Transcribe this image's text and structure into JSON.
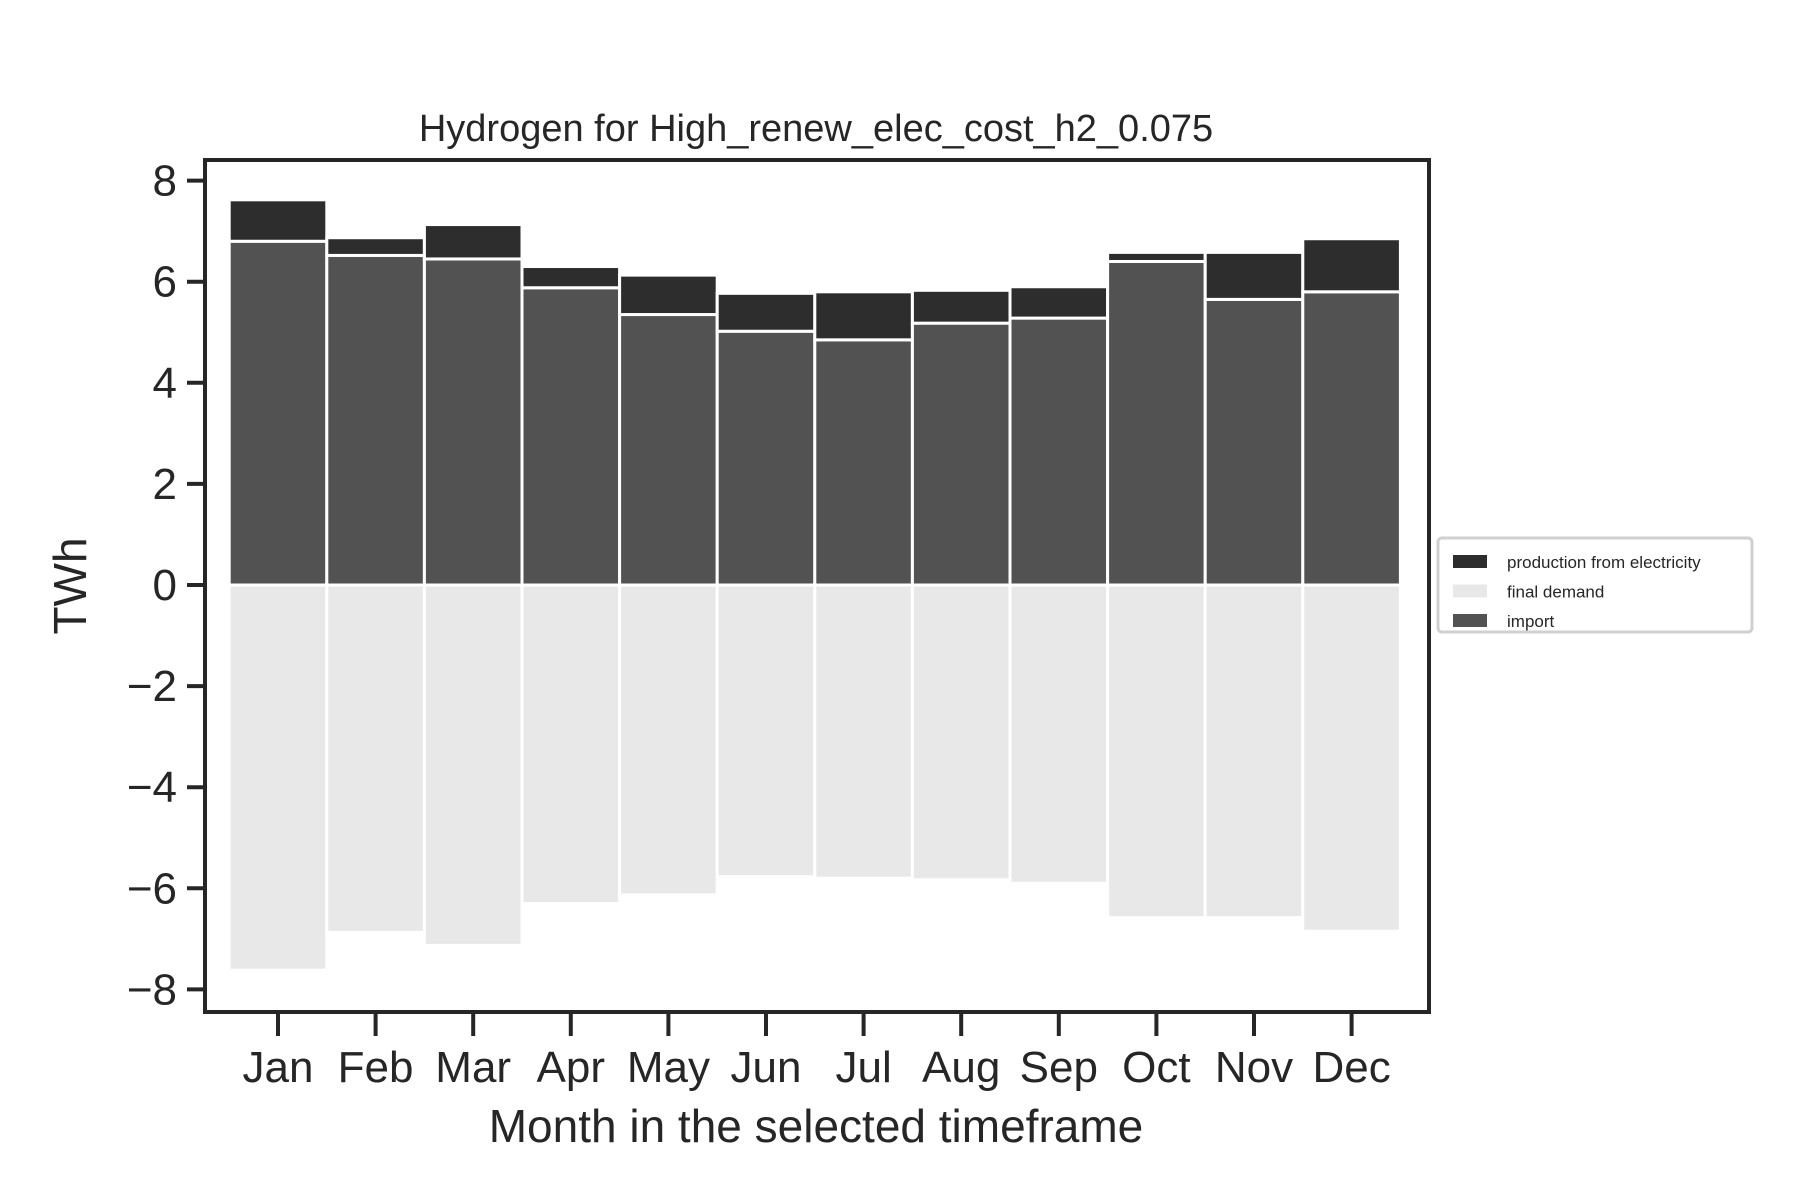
{
  "colors": {
    "production from electricity": "#2d2d2d",
    "final demand": "#e8e8e8",
    "import": "#525252",
    "frame": "#262626",
    "bar_edge": "#ffffff"
  },
  "chart_data": {
    "type": "bar",
    "stacked": true,
    "title": "Hydrogen for High_renew_elec_cost_h2_0.075",
    "xlabel": "Month in the selected timeframe",
    "ylabel": "TWh",
    "categories": [
      "Jan",
      "Feb",
      "Mar",
      "Apr",
      "May",
      "Jun",
      "Jul",
      "Aug",
      "Sep",
      "Oct",
      "Nov",
      "Dec"
    ],
    "yticks": [
      -8,
      -6,
      -4,
      -2,
      0,
      2,
      4,
      6,
      8
    ],
    "ytick_labels": [
      "−8",
      "−6",
      "−4",
      "−2",
      "0",
      "2",
      "4",
      "6",
      "8"
    ],
    "ylim": [
      -8.4,
      8.5
    ],
    "series": [
      {
        "name": "import",
        "values": [
          6.8,
          6.52,
          6.45,
          5.88,
          5.35,
          5.02,
          4.85,
          5.18,
          5.28,
          6.4,
          5.65,
          5.8
        ]
      },
      {
        "name": "production from electricity",
        "values": [
          0.82,
          0.35,
          0.68,
          0.42,
          0.78,
          0.75,
          0.95,
          0.65,
          0.62,
          0.18,
          0.93,
          1.05
        ]
      },
      {
        "name": "final demand",
        "values": [
          -7.62,
          -6.87,
          -7.13,
          -6.3,
          -6.13,
          -5.77,
          -5.8,
          -5.83,
          -5.9,
          -6.58,
          -6.58,
          -6.85
        ]
      }
    ],
    "legend": {
      "placement": "right-outside",
      "entries": [
        "production from electricity",
        "final demand",
        "import"
      ]
    },
    "grid": false
  }
}
